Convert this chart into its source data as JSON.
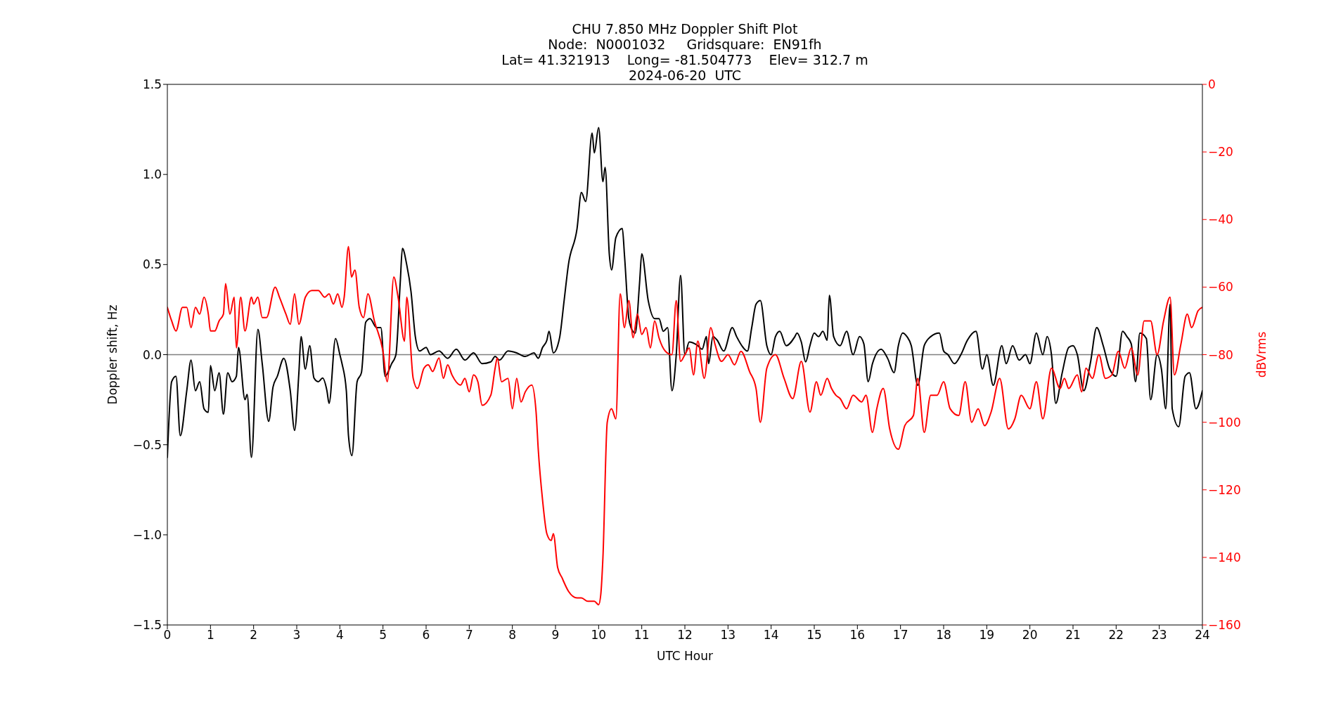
{
  "chart_data": {
    "type": "line",
    "title": "CHU 7.850 MHz Doppler Shift Plot",
    "subtitle": "Node:  N0001032     Gridsquare:  EN91fh\nLat= 41.321913    Long= -81.504773    Elev= 312.7 m\n2024-06-20  UTC",
    "xlabel": "UTC Hour",
    "ylabel": "Doppler shift, Hz",
    "y2label": "dBVrms",
    "xlim": [
      0,
      24
    ],
    "xticks": [
      0,
      1,
      2,
      3,
      4,
      5,
      6,
      7,
      8,
      9,
      10,
      11,
      12,
      13,
      14,
      15,
      16,
      17,
      18,
      19,
      20,
      21,
      22,
      23,
      24
    ],
    "ylim": [
      -1.5,
      1.5
    ],
    "yticks": [
      {
        "value": -1.5,
        "label": "−1.5"
      },
      {
        "value": -1.0,
        "label": "−1.0"
      },
      {
        "value": -0.5,
        "label": "−0.5"
      },
      {
        "value": 0,
        "label": "0.0"
      },
      0.5,
      {
        "value": 1.0,
        "label": "1.0"
      },
      1.5
    ],
    "y2lim": [
      -160,
      0
    ],
    "y2ticks": [
      {
        "value": -160,
        "label": "−160"
      },
      {
        "value": -140,
        "label": "−140"
      },
      {
        "value": -120,
        "label": "−120"
      },
      {
        "value": -100,
        "label": "−100"
      },
      {
        "value": -80,
        "label": "−80"
      },
      {
        "value": -60,
        "label": "−60"
      },
      {
        "value": -40,
        "label": "−40"
      },
      {
        "value": -20,
        "label": "−20"
      },
      0
    ],
    "ref_lines": [
      {
        "axis": "y",
        "value": 0,
        "color": "#808080"
      }
    ],
    "grid": false,
    "marker": "none",
    "line_style": "solid",
    "series": [
      {
        "color": "#000000",
        "x": [
          0,
          0.1,
          0.2,
          0.3,
          0.45,
          0.55,
          0.65,
          0.75,
          0.85,
          0.95,
          1.0,
          1.1,
          1.2,
          1.3,
          1.4,
          1.5,
          1.6,
          1.65,
          1.8,
          1.85,
          1.95,
          2.1,
          2.2,
          2.35,
          2.45,
          2.55,
          2.7,
          2.85,
          2.95,
          3.05,
          3.1,
          3.2,
          3.3,
          3.4,
          3.5,
          3.6,
          3.7,
          3.75,
          3.9,
          4.0,
          4.05,
          4.15,
          4.2,
          4.28,
          4.4,
          4.5,
          4.6,
          4.7,
          4.85,
          4.95,
          5.05,
          5.2,
          5.3,
          5.4,
          5.45,
          5.55,
          5.65,
          5.75,
          5.85,
          6.0,
          6.1,
          6.3,
          6.5,
          6.7,
          6.9,
          7.1,
          7.3,
          7.5,
          7.6,
          7.7,
          7.9,
          8.1,
          8.3,
          8.5,
          8.6,
          8.7,
          8.8,
          8.85,
          8.95,
          9.05,
          9.1,
          9.2,
          9.3,
          9.5,
          9.6,
          9.7,
          9.85,
          9.9,
          10.0,
          10.1,
          10.15,
          10.25,
          10.3,
          10.4,
          10.55,
          10.6,
          10.7,
          10.75,
          10.85,
          10.95,
          11.0,
          11.15,
          11.3,
          11.4,
          11.5,
          11.6,
          11.7,
          11.8,
          11.9,
          12.0,
          12.1,
          12.3,
          12.4,
          12.5,
          12.55,
          12.65,
          12.75,
          12.9,
          13.1,
          13.2,
          13.35,
          13.45,
          13.55,
          13.65,
          13.75,
          13.9,
          14.0,
          14.1,
          14.2,
          14.35,
          14.55,
          14.6,
          14.7,
          14.8,
          14.9,
          15.0,
          15.1,
          15.2,
          15.3,
          15.35,
          15.45,
          15.6,
          15.75,
          15.9,
          16.05,
          16.15,
          16.25,
          16.35,
          16.55,
          16.7,
          16.85,
          16.95,
          17.05,
          17.15,
          17.25,
          17.4,
          17.55,
          17.7,
          17.9,
          18.0,
          18.1,
          18.25,
          18.4,
          18.55,
          18.75,
          18.9,
          19.0,
          19.15,
          19.35,
          19.45,
          19.6,
          19.75,
          19.9,
          20.0,
          20.15,
          20.3,
          20.4,
          20.5,
          20.6,
          20.75,
          20.9,
          21.0,
          21.1,
          21.25,
          21.4,
          21.55,
          21.7,
          21.85,
          22.0,
          22.15,
          22.25,
          22.35,
          22.45,
          22.55,
          22.7,
          22.8,
          22.95,
          23.05,
          23.15,
          23.25,
          23.3,
          23.45,
          23.6,
          23.7,
          23.85,
          24.0
        ],
        "values": [
          -0.57,
          -0.15,
          -0.12,
          -0.45,
          -0.2,
          -0.03,
          -0.2,
          -0.15,
          -0.3,
          -0.32,
          -0.06,
          -0.2,
          -0.1,
          -0.33,
          -0.1,
          -0.15,
          -0.12,
          0.04,
          -0.25,
          -0.22,
          -0.57,
          0.14,
          -0.05,
          -0.37,
          -0.18,
          -0.12,
          -0.02,
          -0.2,
          -0.42,
          -0.1,
          0.1,
          -0.08,
          0.05,
          -0.13,
          -0.15,
          -0.13,
          -0.2,
          -0.27,
          0.09,
          0.0,
          -0.05,
          -0.2,
          -0.45,
          -0.56,
          -0.15,
          -0.1,
          0.18,
          0.2,
          0.15,
          0.15,
          -0.12,
          -0.05,
          0.0,
          0.4,
          0.59,
          0.5,
          0.35,
          0.1,
          0.02,
          0.04,
          0.0,
          0.02,
          -0.02,
          0.03,
          -0.03,
          0.01,
          -0.05,
          -0.04,
          -0.01,
          -0.03,
          0.02,
          0.01,
          -0.01,
          0.01,
          -0.02,
          0.04,
          0.08,
          0.13,
          0.01,
          0.05,
          0.1,
          0.3,
          0.5,
          0.7,
          0.9,
          0.85,
          1.23,
          1.12,
          1.26,
          0.96,
          1.04,
          0.55,
          0.47,
          0.65,
          0.7,
          0.55,
          0.2,
          0.15,
          0.12,
          0.4,
          0.56,
          0.3,
          0.2,
          0.2,
          0.13,
          0.15,
          -0.2,
          0.0,
          0.44,
          0.0,
          0.07,
          0.05,
          0.03,
          0.1,
          -0.05,
          0.1,
          0.08,
          0.02,
          0.15,
          0.1,
          0.04,
          0.02,
          0.15,
          0.28,
          0.3,
          0.05,
          0.0,
          0.1,
          0.13,
          0.05,
          0.1,
          0.12,
          0.07,
          -0.04,
          0.05,
          0.12,
          0.1,
          0.13,
          0.08,
          0.33,
          0.1,
          0.05,
          0.13,
          0.0,
          0.1,
          0.06,
          -0.15,
          -0.05,
          0.03,
          -0.02,
          -0.1,
          0.05,
          0.12,
          0.1,
          0.05,
          -0.17,
          0.05,
          0.1,
          0.12,
          0.02,
          0.0,
          -0.05,
          0.0,
          0.08,
          0.13,
          -0.08,
          0.0,
          -0.17,
          0.05,
          -0.05,
          0.05,
          -0.03,
          0.0,
          -0.05,
          0.12,
          0.0,
          0.1,
          0.0,
          -0.27,
          -0.1,
          0.04,
          0.05,
          0.0,
          -0.2,
          -0.05,
          0.15,
          0.05,
          -0.08,
          -0.12,
          0.13,
          0.1,
          0.06,
          -0.15,
          0.12,
          0.09,
          -0.25,
          0.0,
          -0.08,
          -0.3,
          0.28,
          -0.3,
          -0.4,
          -0.12,
          -0.1,
          -0.3,
          -0.2
        ]
      },
      {
        "color": "#ff0000",
        "axis": "y2",
        "x": [
          0,
          0.1,
          0.2,
          0.35,
          0.45,
          0.55,
          0.65,
          0.75,
          0.85,
          0.95,
          1.0,
          1.1,
          1.2,
          1.3,
          1.35,
          1.45,
          1.55,
          1.6,
          1.7,
          1.8,
          1.95,
          2.0,
          2.1,
          2.2,
          2.3,
          2.5,
          2.6,
          2.75,
          2.85,
          2.95,
          3.05,
          3.2,
          3.35,
          3.5,
          3.65,
          3.75,
          3.85,
          3.95,
          4.05,
          4.1,
          4.2,
          4.27,
          4.35,
          4.45,
          4.55,
          4.65,
          4.8,
          5.0,
          5.1,
          5.25,
          5.35,
          5.5,
          5.55,
          5.7,
          5.8,
          5.95,
          6.05,
          6.15,
          6.3,
          6.4,
          6.5,
          6.6,
          6.8,
          6.9,
          7.0,
          7.1,
          7.2,
          7.3,
          7.5,
          7.6,
          7.65,
          7.75,
          7.9,
          8.0,
          8.1,
          8.2,
          8.3,
          8.45,
          8.55,
          8.6,
          8.7,
          8.8,
          8.9,
          8.95,
          9.05,
          9.15,
          9.3,
          9.5,
          9.6,
          9.75,
          9.9,
          10.0,
          10.05,
          10.1,
          10.2,
          10.3,
          10.4,
          10.5,
          10.6,
          10.7,
          10.8,
          10.9,
          11.0,
          11.1,
          11.2,
          11.3,
          11.4,
          11.55,
          11.7,
          11.8,
          11.9,
          12.0,
          12.1,
          12.2,
          12.3,
          12.45,
          12.6,
          12.7,
          12.85,
          13.0,
          13.15,
          13.3,
          13.5,
          13.65,
          13.75,
          13.9,
          14.1,
          14.3,
          14.5,
          14.7,
          14.9,
          15.05,
          15.15,
          15.3,
          15.4,
          15.5,
          15.6,
          15.75,
          15.9,
          16.1,
          16.2,
          16.35,
          16.45,
          16.6,
          16.75,
          16.95,
          17.1,
          17.3,
          17.4,
          17.55,
          17.7,
          17.85,
          18.0,
          18.15,
          18.35,
          18.5,
          18.65,
          18.8,
          18.95,
          19.1,
          19.3,
          19.5,
          19.65,
          19.8,
          20.0,
          20.15,
          20.3,
          20.5,
          20.7,
          20.8,
          20.9,
          21.1,
          21.2,
          21.3,
          21.45,
          21.6,
          21.75,
          21.9,
          22.05,
          22.2,
          22.35,
          22.5,
          22.65,
          22.8,
          22.95,
          23.1,
          23.25,
          23.35,
          23.5,
          23.65,
          23.75,
          23.9,
          24.0
        ],
        "values": [
          -66,
          -70,
          -73,
          -66,
          -66,
          -72,
          -66,
          -68,
          -63,
          -68,
          -73,
          -73,
          -70,
          -68,
          -59,
          -68,
          -63,
          -78,
          -63,
          -73,
          -63,
          -65,
          -63,
          -69,
          -69,
          -60,
          -63,
          -68,
          -71,
          -62,
          -71,
          -63,
          -61,
          -61,
          -63,
          -62,
          -65,
          -62,
          -66,
          -63,
          -48,
          -57,
          -55,
          -66,
          -69,
          -62,
          -70,
          -79,
          -88,
          -57,
          -63,
          -76,
          -63,
          -87,
          -90,
          -84,
          -83,
          -85,
          -81,
          -87,
          -83,
          -86,
          -89,
          -87,
          -91,
          -86,
          -88,
          -95,
          -92,
          -84,
          -81,
          -88,
          -87,
          -96,
          -87,
          -94,
          -91,
          -89,
          -97,
          -108,
          -123,
          -133,
          -135,
          -133,
          -143,
          -146,
          -150,
          -152,
          -152,
          -153,
          -153,
          -154,
          -151,
          -140,
          -100,
          -96,
          -99,
          -62,
          -72,
          -64,
          -75,
          -68,
          -74,
          -72,
          -78,
          -70,
          -75,
          -79,
          -80,
          -64,
          -82,
          -80,
          -78,
          -86,
          -76,
          -87,
          -72,
          -77,
          -82,
          -80,
          -83,
          -79,
          -85,
          -90,
          -100,
          -84,
          -80,
          -87,
          -93,
          -82,
          -97,
          -88,
          -92,
          -87,
          -90,
          -92,
          -93,
          -96,
          -92,
          -94,
          -92,
          -103,
          -96,
          -90,
          -102,
          -108,
          -101,
          -98,
          -87,
          -103,
          -92,
          -92,
          -88,
          -96,
          -98,
          -88,
          -100,
          -96,
          -101,
          -97,
          -87,
          -102,
          -99,
          -92,
          -96,
          -88,
          -99,
          -84,
          -90,
          -87,
          -90,
          -86,
          -91,
          -84,
          -87,
          -80,
          -87,
          -86,
          -79,
          -84,
          -78,
          -86,
          -70,
          -70,
          -80,
          -70,
          -63,
          -86,
          -77,
          -68,
          -72,
          -67,
          -66
        ]
      }
    ]
  }
}
